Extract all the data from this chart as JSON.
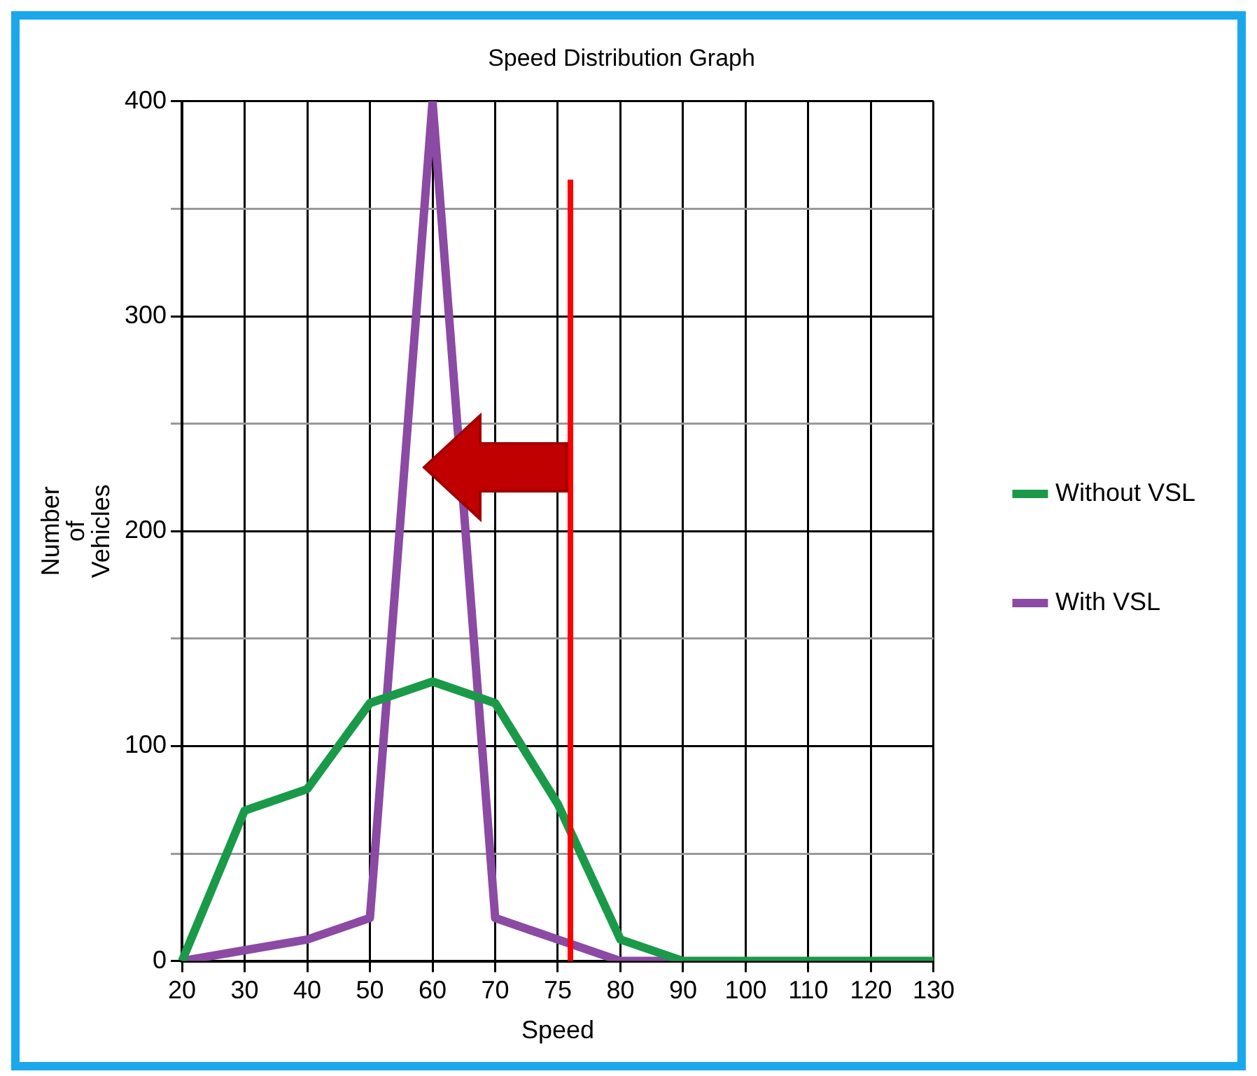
{
  "chart_data": {
    "type": "line",
    "title": "Speed Distribution Graph",
    "xlabel": "Speed",
    "ylabel": "Number of Vehicles",
    "categories": [
      "20",
      "30",
      "40",
      "50",
      "60",
      "70",
      "75",
      "80",
      "90",
      "100",
      "110",
      "120",
      "130"
    ],
    "series": [
      {
        "name": "Without VSL",
        "color": "#1a9a48",
        "values": [
          0,
          70,
          80,
          120,
          130,
          120,
          73,
          10,
          0,
          0,
          0,
          0,
          0
        ]
      },
      {
        "name": "With VSL",
        "color": "#8b4aa3",
        "values": [
          0,
          5,
          10,
          20,
          400,
          20,
          10,
          0,
          0,
          null,
          null,
          null,
          null
        ]
      }
    ],
    "ylim": [
      0,
      400
    ],
    "yticks": [
      0,
      {
        "value": 50,
        "label": null
      },
      100,
      {
        "value": 150,
        "label": null
      },
      200,
      {
        "value": 250,
        "label": null
      },
      300,
      {
        "value": 350,
        "label": null
      },
      400
    ],
    "ref_lines": [
      {
        "axis": "x",
        "value": "75",
        "color": "#ff0000"
      }
    ],
    "grid": true,
    "legend": "right",
    "marker": "none",
    "line_style": "solid"
  }
}
